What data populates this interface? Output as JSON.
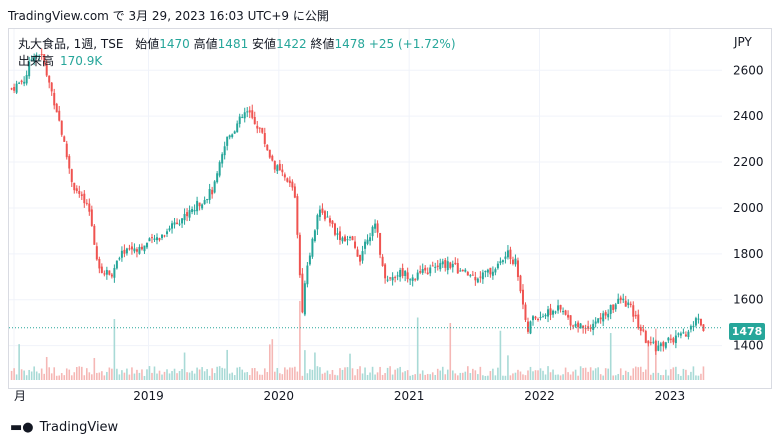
{
  "header": {
    "caption": "TradingView.com で 3月 29, 2023 16:03 UTC+9 に公開"
  },
  "legend": {
    "symbol": "丸大食品, 1週, TSE",
    "open_label": "始値",
    "open_value": "1470",
    "high_label": "高値",
    "high_value": "1481",
    "low_label": "安値",
    "low_value": "1422",
    "close_label": "終値",
    "close_value": "1478",
    "change": "+25 (+1.72%)",
    "volume_label": "出来高",
    "volume_value": "170.9K"
  },
  "currency": "JPY",
  "footer": {
    "brand": "TradingView"
  },
  "colors": {
    "up": "#26a69a",
    "down": "#ef5350",
    "volume_up": "#a8dad6",
    "volume_down": "#f5b7b5",
    "grid": "#f0f3fa"
  },
  "chart_data": {
    "type": "candlestick",
    "title": "丸大食品, 1週, TSE",
    "ylabel": "JPY",
    "ylim": [
      1250,
      2780
    ],
    "y_ticks": [
      1400,
      1600,
      1800,
      2000,
      2200,
      2400,
      2600
    ],
    "x_ticks": [
      "月",
      "2019",
      "2020",
      "2021",
      "2022",
      "2023"
    ],
    "x_tick_positions": [
      2018.0,
      2019.0,
      2020.0,
      2021.0,
      2022.0,
      2023.0
    ],
    "last_price": 1478,
    "anchors": [
      [
        2017.95,
        2520
      ],
      [
        2018.05,
        2560
      ],
      [
        2018.12,
        2680
      ],
      [
        2018.18,
        2660
      ],
      [
        2018.3,
        2420
      ],
      [
        2018.42,
        2100
      ],
      [
        2018.55,
        1980
      ],
      [
        2018.62,
        1720
      ],
      [
        2018.72,
        1720
      ],
      [
        2018.82,
        1820
      ],
      [
        2018.95,
        1830
      ],
      [
        2019.1,
        1880
      ],
      [
        2019.2,
        1940
      ],
      [
        2019.3,
        1970
      ],
      [
        2019.42,
        2040
      ],
      [
        2019.5,
        2080
      ],
      [
        2019.6,
        2300
      ],
      [
        2019.75,
        2420
      ],
      [
        2019.85,
        2350
      ],
      [
        2019.95,
        2200
      ],
      [
        2020.05,
        2120
      ],
      [
        2020.12,
        2080
      ],
      [
        2020.18,
        1560
      ],
      [
        2020.22,
        1760
      ],
      [
        2020.3,
        1980
      ],
      [
        2020.38,
        1960
      ],
      [
        2020.45,
        1880
      ],
      [
        2020.55,
        1860
      ],
      [
        2020.62,
        1780
      ],
      [
        2020.68,
        1880
      ],
      [
        2020.75,
        1920
      ],
      [
        2020.8,
        1720
      ],
      [
        2020.85,
        1690
      ],
      [
        2020.92,
        1720
      ],
      [
        2021.05,
        1700
      ],
      [
        2021.2,
        1740
      ],
      [
        2021.3,
        1760
      ],
      [
        2021.4,
        1720
      ],
      [
        2021.5,
        1700
      ],
      [
        2021.62,
        1720
      ],
      [
        2021.7,
        1760
      ],
      [
        2021.75,
        1800
      ],
      [
        2021.82,
        1760
      ],
      [
        2021.88,
        1560
      ],
      [
        2021.9,
        1450
      ],
      [
        2021.95,
        1520
      ],
      [
        2022.05,
        1540
      ],
      [
        2022.15,
        1560
      ],
      [
        2022.25,
        1500
      ],
      [
        2022.35,
        1480
      ],
      [
        2022.45,
        1510
      ],
      [
        2022.55,
        1560
      ],
      [
        2022.62,
        1600
      ],
      [
        2022.68,
        1580
      ],
      [
        2022.75,
        1500
      ],
      [
        2022.82,
        1420
      ],
      [
        2022.9,
        1390
      ],
      [
        2022.98,
        1420
      ],
      [
        2023.05,
        1430
      ],
      [
        2023.12,
        1450
      ],
      [
        2023.18,
        1490
      ],
      [
        2023.22,
        1520
      ],
      [
        2023.25,
        1470
      ],
      [
        2023.27,
        1478
      ]
    ]
  }
}
